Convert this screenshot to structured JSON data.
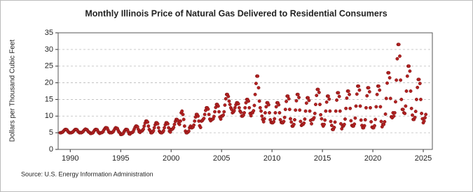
{
  "chart_data": {
    "type": "scatter",
    "title": "Monthly Illinois Price of Natural Gas Delivered to Residential Consumers",
    "y_label": "Dollars per Thousand Cubic Feet",
    "source": "Source: U.S. Energy Information Administration",
    "xlim": [
      1988.8,
      2025.9
    ],
    "xticks": [
      1990,
      1995,
      2000,
      2005,
      2010,
      2015,
      2020,
      2025
    ],
    "ylim": [
      0,
      35
    ],
    "yticks": [
      0,
      5,
      10,
      15,
      20,
      25,
      30,
      35
    ],
    "grid": true,
    "series": [
      {
        "name": "Illinois",
        "color": "#b22222",
        "x": [
          1989,
          1989.08,
          1989.17,
          1989.25,
          1989.33,
          1989.42,
          1989.5,
          1989.58,
          1989.67,
          1989.75,
          1989.83,
          1989.92,
          1990,
          1990.08,
          1990.17,
          1990.25,
          1990.33,
          1990.42,
          1990.5,
          1990.58,
          1990.67,
          1990.75,
          1990.83,
          1990.92,
          1991,
          1991.08,
          1991.17,
          1991.25,
          1991.33,
          1991.42,
          1991.5,
          1991.58,
          1991.67,
          1991.75,
          1991.83,
          1991.92,
          1992,
          1992.08,
          1992.17,
          1992.25,
          1992.33,
          1992.42,
          1992.5,
          1992.58,
          1992.67,
          1992.75,
          1992.83,
          1992.92,
          1993,
          1993.08,
          1993.17,
          1993.25,
          1993.33,
          1993.42,
          1993.5,
          1993.58,
          1993.67,
          1993.75,
          1993.83,
          1993.92,
          1994,
          1994.08,
          1994.17,
          1994.25,
          1994.33,
          1994.42,
          1994.5,
          1994.58,
          1994.67,
          1994.75,
          1994.83,
          1994.92,
          1995,
          1995.08,
          1995.17,
          1995.25,
          1995.33,
          1995.42,
          1995.5,
          1995.58,
          1995.67,
          1995.75,
          1995.83,
          1995.92,
          1996,
          1996.08,
          1996.17,
          1996.25,
          1996.33,
          1996.42,
          1996.5,
          1996.58,
          1996.67,
          1996.75,
          1996.83,
          1996.92,
          1997,
          1997.08,
          1997.17,
          1997.25,
          1997.33,
          1997.42,
          1997.5,
          1997.58,
          1997.67,
          1997.75,
          1997.83,
          1997.92,
          1998,
          1998.08,
          1998.17,
          1998.25,
          1998.33,
          1998.42,
          1998.5,
          1998.58,
          1998.67,
          1998.75,
          1998.83,
          1998.92,
          1999,
          1999.08,
          1999.17,
          1999.25,
          1999.33,
          1999.42,
          1999.5,
          1999.58,
          1999.67,
          1999.75,
          1999.83,
          1999.92,
          2000,
          2000.08,
          2000.17,
          2000.25,
          2000.33,
          2000.42,
          2000.5,
          2000.58,
          2000.67,
          2000.75,
          2000.83,
          2000.92,
          2001,
          2001.08,
          2001.17,
          2001.25,
          2001.33,
          2001.42,
          2001.5,
          2001.58,
          2001.67,
          2001.75,
          2001.83,
          2001.92,
          2002,
          2002.08,
          2002.17,
          2002.25,
          2002.33,
          2002.42,
          2002.5,
          2002.58,
          2002.67,
          2002.75,
          2002.83,
          2002.92,
          2003,
          2003.08,
          2003.17,
          2003.25,
          2003.33,
          2003.42,
          2003.5,
          2003.58,
          2003.67,
          2003.75,
          2003.83,
          2003.92,
          2004,
          2004.08,
          2004.17,
          2004.25,
          2004.33,
          2004.42,
          2004.5,
          2004.58,
          2004.67,
          2004.75,
          2004.83,
          2004.92,
          2005,
          2005.08,
          2005.17,
          2005.25,
          2005.33,
          2005.42,
          2005.5,
          2005.58,
          2005.67,
          2005.75,
          2005.83,
          2005.92,
          2006,
          2006.08,
          2006.17,
          2006.25,
          2006.33,
          2006.42,
          2006.5,
          2006.58,
          2006.67,
          2006.75,
          2006.83,
          2006.92,
          2007,
          2007.08,
          2007.17,
          2007.25,
          2007.33,
          2007.42,
          2007.5,
          2007.58,
          2007.67,
          2007.75,
          2007.83,
          2007.92,
          2008,
          2008.08,
          2008.17,
          2008.25,
          2008.33,
          2008.42,
          2008.5,
          2008.58,
          2008.67,
          2008.75,
          2008.83,
          2008.92,
          2009,
          2009.08,
          2009.17,
          2009.25,
          2009.33,
          2009.42,
          2009.5,
          2009.58,
          2009.67,
          2009.75,
          2009.83,
          2009.92,
          2010,
          2010.08,
          2010.17,
          2010.25,
          2010.33,
          2010.42,
          2010.5,
          2010.58,
          2010.67,
          2010.75,
          2010.83,
          2010.92,
          2011,
          2011.08,
          2011.17,
          2011.25,
          2011.33,
          2011.42,
          2011.5,
          2011.58,
          2011.67,
          2011.75,
          2011.83,
          2011.92,
          2012,
          2012.08,
          2012.17,
          2012.25,
          2012.33,
          2012.42,
          2012.5,
          2012.58,
          2012.67,
          2012.75,
          2012.83,
          2012.92,
          2013,
          2013.08,
          2013.17,
          2013.25,
          2013.33,
          2013.42,
          2013.5,
          2013.58,
          2013.67,
          2013.75,
          2013.83,
          2013.92,
          2014,
          2014.08,
          2014.17,
          2014.25,
          2014.33,
          2014.42,
          2014.5,
          2014.58,
          2014.67,
          2014.75,
          2014.83,
          2014.92,
          2015,
          2015.08,
          2015.17,
          2015.25,
          2015.33,
          2015.42,
          2015.5,
          2015.58,
          2015.67,
          2015.75,
          2015.83,
          2015.92,
          2016,
          2016.08,
          2016.17,
          2016.25,
          2016.33,
          2016.42,
          2016.5,
          2016.58,
          2016.67,
          2016.75,
          2016.83,
          2016.92,
          2017,
          2017.08,
          2017.17,
          2017.25,
          2017.33,
          2017.42,
          2017.5,
          2017.58,
          2017.67,
          2017.75,
          2017.83,
          2017.92,
          2018,
          2018.08,
          2018.17,
          2018.25,
          2018.33,
          2018.42,
          2018.5,
          2018.58,
          2018.67,
          2018.75,
          2018.83,
          2018.92,
          2019,
          2019.08,
          2019.17,
          2019.25,
          2019.33,
          2019.42,
          2019.5,
          2019.58,
          2019.67,
          2019.75,
          2019.83,
          2019.92,
          2020,
          2020.08,
          2020.17,
          2020.25,
          2020.33,
          2020.42,
          2020.5,
          2020.58,
          2020.67,
          2020.75,
          2020.83,
          2020.92,
          2021,
          2021.08,
          2021.17,
          2021.25,
          2021.33,
          2021.42,
          2021.5,
          2021.58,
          2021.67,
          2021.75,
          2021.83,
          2021.92,
          2022,
          2022.08,
          2022.17,
          2022.25,
          2022.33,
          2022.42,
          2022.5,
          2022.58,
          2022.67,
          2022.75,
          2022.83,
          2022.92,
          2023,
          2023.08,
          2023.17,
          2023.25,
          2023.33,
          2023.42,
          2023.5,
          2023.58,
          2023.67,
          2023.75,
          2023.83,
          2023.92,
          2024,
          2024.08,
          2024.17,
          2024.25,
          2024.33,
          2024.42,
          2024.5,
          2024.58,
          2024.67,
          2024.75,
          2024.83,
          2024.92,
          2025,
          2025.08,
          2025.17,
          2025.25
        ],
        "values": [
          5,
          5,
          5.1,
          5.2,
          5.5,
          5.8,
          6,
          6,
          5.9,
          5.5,
          5.2,
          5,
          5,
          5,
          5.1,
          5.2,
          5.5,
          5.8,
          6,
          6,
          5.9,
          5.5,
          5.2,
          5,
          5.1,
          5,
          5.1,
          5.3,
          5.6,
          5.9,
          6.1,
          6,
          5.9,
          5.5,
          5.2,
          5.1,
          4.8,
          4.8,
          4.9,
          5,
          5.4,
          5.8,
          6,
          6,
          5.9,
          5.4,
          5,
          4.8,
          5,
          5,
          5.1,
          5.3,
          5.8,
          6.2,
          6.5,
          6.5,
          6.4,
          5.8,
          5.2,
          5,
          5.1,
          5,
          5.1,
          5.3,
          5.7,
          6.2,
          6.5,
          6.4,
          6.3,
          5.7,
          5.2,
          5,
          4.5,
          4.5,
          4.6,
          4.8,
          5.3,
          5.7,
          6,
          6,
          5.9,
          5.3,
          4.7,
          4.6,
          5,
          5,
          5.1,
          5.4,
          6,
          6.6,
          7,
          7,
          6.8,
          6,
          5.3,
          5.1,
          5.5,
          5.5,
          5.7,
          6.1,
          7,
          7.9,
          8.5,
          8.5,
          8.2,
          7,
          6,
          5.6,
          5,
          5,
          5.2,
          5.6,
          6.5,
          7.4,
          8,
          8,
          7.7,
          6.5,
          5.5,
          5.1,
          5,
          5,
          5.2,
          5.6,
          6.5,
          7.4,
          8,
          8,
          7.7,
          6.5,
          5.5,
          5.2,
          6,
          6,
          6.2,
          6.6,
          7.5,
          8.4,
          9,
          9,
          8.7,
          7.8,
          7.5,
          8.5,
          11,
          11.5,
          10.5,
          9,
          7,
          5.5,
          5,
          5,
          5.2,
          5.5,
          6.5,
          7,
          6.5,
          6.5,
          6.7,
          7.3,
          8.5,
          9.7,
          10.5,
          10.5,
          10,
          8.5,
          7.1,
          6.6,
          8.5,
          8.6,
          9,
          9.3,
          10.5,
          11.7,
          12.5,
          12.5,
          12.1,
          10.5,
          9.1,
          8.6,
          9,
          9,
          9.2,
          9.9,
          11.3,
          12.6,
          13.5,
          13.5,
          13,
          11.3,
          9.7,
          9.1,
          10,
          10,
          10.3,
          11.3,
          13.3,
          15.2,
          16.5,
          16.5,
          15.9,
          14.5,
          13.5,
          12.5,
          12,
          11,
          11.2,
          11.6,
          12.5,
          13.4,
          14,
          14,
          13.7,
          12.5,
          11.5,
          11.1,
          10,
          10,
          10.3,
          11,
          12.5,
          14,
          15,
          15,
          14.5,
          12.5,
          10.8,
          10.1,
          11,
          11,
          11.6,
          13.2,
          16.5,
          19.8,
          22,
          22,
          18.5,
          14.5,
          12.5,
          11.5,
          10,
          9,
          8.3,
          9.2,
          11,
          12.8,
          14,
          14,
          13.4,
          11,
          8.9,
          8.1,
          8,
          8,
          8.3,
          9.2,
          11,
          12.8,
          14,
          14,
          13.4,
          11,
          8.9,
          8.1,
          8,
          8,
          8.4,
          9.6,
          12,
          14.4,
          16,
          16,
          15.2,
          12,
          9.2,
          8.2,
          7,
          7,
          7.5,
          8.9,
          11.8,
          14.6,
          16.5,
          16.5,
          15.6,
          11.8,
          8.4,
          7.2,
          7.5,
          7.5,
          7.9,
          9.1,
          11.5,
          13.9,
          15.5,
          15.5,
          14.7,
          11.5,
          8.7,
          7.7,
          9,
          9,
          9.5,
          10.8,
          13.5,
          16.2,
          18,
          18,
          17.1,
          13.5,
          10.4,
          9.2,
          7.5,
          7,
          7.5,
          8.8,
          11.5,
          14.2,
          16,
          16,
          15.1,
          11.5,
          8.4,
          7.2,
          6,
          6,
          6.6,
          8.2,
          11.5,
          14.8,
          17,
          17,
          15.9,
          11.5,
          7.7,
          6.2,
          7,
          7,
          7.5,
          9.1,
          12.3,
          15.4,
          17.5,
          17.5,
          16.5,
          12.3,
          8.6,
          7.2,
          7,
          7,
          7.6,
          9.4,
          13,
          16.6,
          19,
          19,
          17.8,
          13,
          8.8,
          7.2,
          6.5,
          6.5,
          7.1,
          8.9,
          12.5,
          16.1,
          18.5,
          18.5,
          17.3,
          12.5,
          8.3,
          6.7,
          6.5,
          6.5,
          7.1,
          9,
          12.8,
          16.5,
          19,
          19,
          17.8,
          12.8,
          8.4,
          6.8,
          7.5,
          7.5,
          8.3,
          10.6,
          15.3,
          19.9,
          23,
          23,
          21.5,
          15.3,
          9.8,
          9.5,
          11,
          10,
          11,
          14.3,
          20.8,
          27.2,
          31.5,
          31.5,
          28,
          20.8,
          15,
          12,
          12,
          11,
          10.8,
          13,
          17.5,
          22,
          25,
          25,
          23.5,
          17.5,
          12.3,
          10.3,
          9,
          9,
          9.6,
          11.4,
          15,
          18.6,
          21,
          21,
          19.8,
          15,
          10.8,
          9.2,
          8,
          8.5,
          9.5,
          10.5
        ]
      }
    ]
  }
}
